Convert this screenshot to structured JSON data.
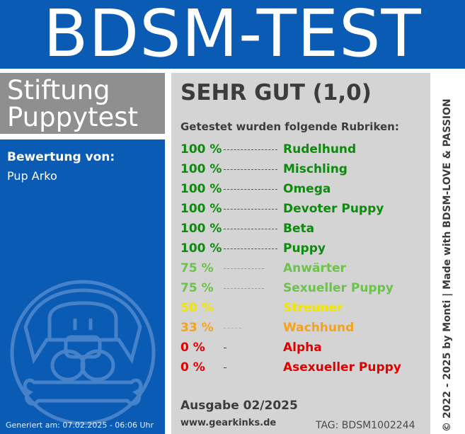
{
  "header": {
    "title": "BDSM-TEST"
  },
  "badge": {
    "line1": "Stiftung",
    "line2": "Puppytest"
  },
  "review": {
    "label": "Bewertung von:",
    "name": "Pup Arko"
  },
  "result": {
    "rating": "SEHR GUT (1,0)",
    "subtitle": "Getestet wurden folgende Rubriken:",
    "items": [
      {
        "pct": "100 %",
        "name": "Rudelhund",
        "value": 100,
        "color": "#0e8a0e"
      },
      {
        "pct": "100 %",
        "name": "Mischling",
        "value": 100,
        "color": "#0e8a0e"
      },
      {
        "pct": "100 %",
        "name": "Omega",
        "value": 100,
        "color": "#0e8a0e"
      },
      {
        "pct": "100 %",
        "name": "Devoter Puppy",
        "value": 100,
        "color": "#0e8a0e"
      },
      {
        "pct": "100 %",
        "name": "Beta",
        "value": 100,
        "color": "#0e8a0e"
      },
      {
        "pct": "100 %",
        "name": "Puppy",
        "value": 100,
        "color": "#0e8a0e"
      },
      {
        "pct": "75 %",
        "name": "Anwärter",
        "value": 75,
        "color": "#6cc24a"
      },
      {
        "pct": "75 %",
        "name": "Sexueller Puppy",
        "value": 75,
        "color": "#6cc24a"
      },
      {
        "pct": "50 %",
        "name": "Streuner",
        "value": 50,
        "color": "#f2e600"
      },
      {
        "pct": "33 %",
        "name": "Wachhund",
        "value": 33,
        "color": "#f5a21c"
      },
      {
        "pct": "0 %",
        "name": "Alpha",
        "value": 0,
        "color": "#e00000"
      },
      {
        "pct": "0 %",
        "name": "Asexueller Puppy",
        "value": 0,
        "color": "#e00000"
      }
    ]
  },
  "footer": {
    "edition": "Ausgabe 02/2025",
    "url": "www.gearkinks.de",
    "tag": "TAG: BDSM1002244",
    "generated": "Generiert am: 07.02.2025 - 06:06 Uhr",
    "copyright": "© 2022 - 2025 by Monti | Made with BDSM-LOVE & PASSION"
  },
  "colors": {
    "blue": "#0a5bb4",
    "grey_panel": "#d4d4d4",
    "badge_grey": "#8f8f8f"
  },
  "icons": {
    "logo": "dog-bone-icon"
  }
}
